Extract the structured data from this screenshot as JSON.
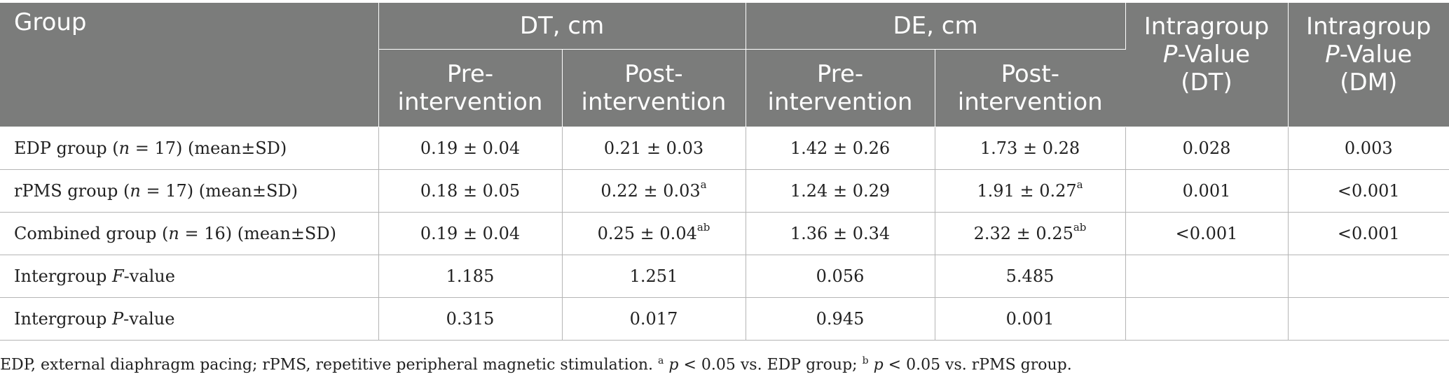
{
  "header": {
    "group": "Group",
    "dt": "DT, cm",
    "de": "DE, cm",
    "pre": [
      "Pre-",
      "intervention"
    ],
    "post": [
      "Post-",
      "intervention"
    ],
    "intragroup": "Intragroup",
    "p": "P",
    "value_suffix": "-Value",
    "dt_paren": "(DT)",
    "dm_paren": "(DM)"
  },
  "rows": [
    {
      "label_pre": "EDP group (",
      "n": "n",
      "label_post": " = 17) (mean±SD)",
      "dt_pre": "0.19 ± 0.04",
      "dt_post": "0.21 ± 0.03",
      "dt_post_sup": "",
      "de_pre": "1.42 ± 0.26",
      "de_post": "1.73 ± 0.28",
      "de_post_sup": "",
      "p_dt": "0.028",
      "p_dm": "0.003"
    },
    {
      "label_pre": "rPMS group (",
      "n": "n",
      "label_post": " = 17) (mean±SD)",
      "dt_pre": "0.18 ± 0.05",
      "dt_post": "0.22 ± 0.03",
      "dt_post_sup": "a",
      "de_pre": "1.24 ± 0.29",
      "de_post": "1.91 ± 0.27",
      "de_post_sup": "a",
      "p_dt": "0.001",
      "p_dm": "<0.001"
    },
    {
      "label_pre": "Combined group (",
      "n": "n",
      "label_post": " = 16) (mean±SD)",
      "dt_pre": "0.19 ± 0.04",
      "dt_post": "0.25 ± 0.04",
      "dt_post_sup": "ab",
      "de_pre": "1.36 ± 0.34",
      "de_post": "2.32 ± 0.25",
      "de_post_sup": "ab",
      "p_dt": "<0.001",
      "p_dm": "<0.001"
    }
  ],
  "stat_rows": [
    {
      "label_pre": "Intergroup ",
      "italic": "F",
      "label_post": "-value",
      "dt_pre": "1.185",
      "dt_post": "1.251",
      "de_pre": "0.056",
      "de_post": "5.485"
    },
    {
      "label_pre": "Intergroup ",
      "italic": "P",
      "label_post": "-value",
      "dt_pre": "0.315",
      "dt_post": "0.017",
      "de_pre": "0.945",
      "de_post": "0.001"
    }
  ],
  "footnote": {
    "text1": "EDP, external diaphragm pacing; rPMS, repetitive peripheral magnetic stimulation. ",
    "sup_a": "a",
    "p1": "p",
    "text2": " < 0.05 vs. EDP group; ",
    "sup_b": "b",
    "p2": "p",
    "text3": " < 0.05 vs. rPMS group."
  }
}
